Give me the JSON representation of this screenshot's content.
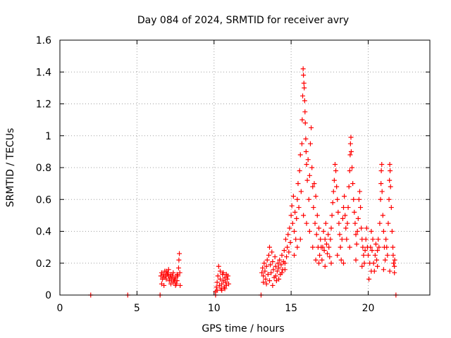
{
  "chart_data": {
    "type": "scatter",
    "title": "Day 084 of 2024, SRMTID for receiver avry",
    "xlabel": "GPS time / hours",
    "ylabel": "SRMTID / TECUs",
    "xlim": [
      0,
      24
    ],
    "ylim": [
      0,
      1.6
    ],
    "x_ticks": [
      0,
      5,
      10,
      15,
      20
    ],
    "x_tick_labels": [
      "0",
      "5",
      "10",
      "15",
      "20"
    ],
    "y_ticks": [
      0,
      0.2,
      0.4,
      0.6,
      0.8,
      1.0,
      1.2,
      1.4,
      1.6
    ],
    "y_tick_labels": [
      "0",
      "0.2",
      "0.4",
      "0.6",
      "0.8",
      "1",
      "1.2",
      "1.4",
      "1.6"
    ],
    "grid": true,
    "marker": "+",
    "color": "#ff0000",
    "series": [
      {
        "name": "SRMTID",
        "points": [
          [
            2.0,
            0.0
          ],
          [
            4.4,
            0.0
          ],
          [
            6.5,
            0.0
          ],
          [
            10.1,
            0.0
          ],
          [
            13.05,
            0.0
          ],
          [
            21.8,
            0.0
          ],
          [
            6.55,
            0.12
          ],
          [
            6.6,
            0.14
          ],
          [
            6.65,
            0.1
          ],
          [
            6.7,
            0.13
          ],
          [
            6.75,
            0.11
          ],
          [
            6.8,
            0.15
          ],
          [
            6.85,
            0.12
          ],
          [
            6.9,
            0.1
          ],
          [
            6.95,
            0.13
          ],
          [
            7.0,
            0.14
          ],
          [
            7.05,
            0.12
          ],
          [
            7.1,
            0.09
          ],
          [
            7.15,
            0.11
          ],
          [
            7.2,
            0.13
          ],
          [
            7.25,
            0.1
          ],
          [
            7.3,
            0.12
          ],
          [
            7.35,
            0.08
          ],
          [
            7.4,
            0.1
          ],
          [
            7.45,
            0.09
          ],
          [
            7.5,
            0.11
          ],
          [
            7.55,
            0.07
          ],
          [
            7.6,
            0.09
          ],
          [
            7.65,
            0.12
          ],
          [
            7.7,
            0.17
          ],
          [
            7.72,
            0.22
          ],
          [
            7.75,
            0.26
          ],
          [
            7.78,
            0.14
          ],
          [
            7.8,
            0.06
          ],
          [
            6.6,
            0.07
          ],
          [
            6.75,
            0.06
          ],
          [
            6.9,
            0.15
          ],
          [
            7.05,
            0.16
          ],
          [
            7.2,
            0.07
          ],
          [
            7.35,
            0.14
          ],
          [
            7.5,
            0.06
          ],
          [
            7.6,
            0.13
          ],
          [
            10.1,
            0.02
          ],
          [
            10.15,
            0.05
          ],
          [
            10.2,
            0.08
          ],
          [
            10.25,
            0.12
          ],
          [
            10.3,
            0.18
          ],
          [
            10.35,
            0.06
          ],
          [
            10.4,
            0.1
          ],
          [
            10.45,
            0.04
          ],
          [
            10.5,
            0.07
          ],
          [
            10.55,
            0.13
          ],
          [
            10.6,
            0.09
          ],
          [
            10.65,
            0.05
          ],
          [
            10.7,
            0.11
          ],
          [
            10.75,
            0.08
          ],
          [
            10.8,
            0.06
          ],
          [
            10.85,
            0.1
          ],
          [
            10.9,
            0.12
          ],
          [
            10.95,
            0.07
          ],
          [
            10.2,
            0.03
          ],
          [
            10.4,
            0.15
          ],
          [
            10.6,
            0.14
          ],
          [
            10.8,
            0.13
          ],
          [
            10.5,
            0.03
          ],
          [
            10.7,
            0.04
          ],
          [
            13.1,
            0.14
          ],
          [
            13.15,
            0.17
          ],
          [
            13.2,
            0.12
          ],
          [
            13.25,
            0.2
          ],
          [
            13.3,
            0.15
          ],
          [
            13.35,
            0.1
          ],
          [
            13.4,
            0.18
          ],
          [
            13.45,
            0.22
          ],
          [
            13.5,
            0.13
          ],
          [
            13.55,
            0.25
          ],
          [
            13.6,
            0.3
          ],
          [
            13.65,
            0.19
          ],
          [
            13.7,
            0.14
          ],
          [
            13.75,
            0.27
          ],
          [
            13.8,
            0.21
          ],
          [
            13.85,
            0.16
          ],
          [
            13.9,
            0.11
          ],
          [
            13.95,
            0.24
          ],
          [
            14.0,
            0.18
          ],
          [
            14.05,
            0.09
          ],
          [
            14.1,
            0.15
          ],
          [
            14.15,
            0.2
          ],
          [
            14.2,
            0.17
          ],
          [
            14.25,
            0.22
          ],
          [
            14.3,
            0.13
          ],
          [
            14.35,
            0.19
          ],
          [
            14.4,
            0.25
          ],
          [
            14.45,
            0.16
          ],
          [
            14.5,
            0.21
          ],
          [
            14.55,
            0.28
          ],
          [
            14.6,
            0.2
          ],
          [
            14.65,
            0.35
          ],
          [
            14.7,
            0.24
          ],
          [
            14.75,
            0.3
          ],
          [
            14.8,
            0.38
          ],
          [
            14.85,
            0.27
          ],
          [
            14.9,
            0.42
          ],
          [
            14.95,
            0.33
          ],
          [
            13.2,
            0.08
          ],
          [
            13.4,
            0.07
          ],
          [
            13.6,
            0.09
          ],
          [
            13.8,
            0.06
          ],
          [
            14.0,
            0.12
          ],
          [
            14.2,
            0.1
          ],
          [
            14.4,
            0.14
          ],
          [
            14.6,
            0.16
          ],
          [
            15.0,
            0.5
          ],
          [
            15.05,
            0.56
          ],
          [
            15.1,
            0.45
          ],
          [
            15.15,
            0.62
          ],
          [
            15.2,
            0.4
          ],
          [
            15.25,
            0.52
          ],
          [
            15.3,
            0.35
          ],
          [
            15.35,
            0.48
          ],
          [
            15.4,
            0.6
          ],
          [
            15.45,
            0.7
          ],
          [
            15.5,
            0.55
          ],
          [
            15.55,
            0.78
          ],
          [
            15.6,
            0.88
          ],
          [
            15.65,
            0.65
          ],
          [
            15.7,
            0.95
          ],
          [
            15.72,
            1.1
          ],
          [
            15.75,
            1.25
          ],
          [
            15.78,
            1.42
          ],
          [
            15.8,
            1.38
          ],
          [
            15.83,
            1.33
          ],
          [
            15.85,
            1.3
          ],
          [
            15.88,
            1.22
          ],
          [
            15.9,
            1.15
          ],
          [
            15.92,
            1.08
          ],
          [
            15.95,
            0.98
          ],
          [
            15.97,
            0.9
          ],
          [
            16.0,
            0.82
          ],
          [
            16.05,
            0.72
          ],
          [
            16.1,
            0.85
          ],
          [
            16.15,
            0.6
          ],
          [
            16.2,
            0.75
          ],
          [
            16.25,
            0.95
          ],
          [
            16.3,
            1.05
          ],
          [
            16.35,
            0.8
          ],
          [
            16.4,
            0.68
          ],
          [
            16.45,
            0.55
          ],
          [
            16.5,
            0.7
          ],
          [
            16.55,
            0.45
          ],
          [
            16.6,
            0.62
          ],
          [
            16.65,
            0.38
          ],
          [
            16.7,
            0.5
          ],
          [
            16.75,
            0.3
          ],
          [
            16.8,
            0.42
          ],
          [
            16.85,
            0.25
          ],
          [
            16.9,
            0.35
          ],
          [
            16.95,
            0.3
          ],
          [
            15.2,
            0.25
          ],
          [
            15.4,
            0.3
          ],
          [
            15.6,
            0.35
          ],
          [
            15.8,
            0.5
          ],
          [
            16.0,
            0.45
          ],
          [
            16.2,
            0.4
          ],
          [
            16.4,
            0.3
          ],
          [
            16.6,
            0.22
          ],
          [
            16.8,
            0.2
          ],
          [
            17.0,
            0.22
          ],
          [
            17.05,
            0.3
          ],
          [
            17.1,
            0.4
          ],
          [
            17.15,
            0.28
          ],
          [
            17.2,
            0.35
          ],
          [
            17.25,
            0.45
          ],
          [
            17.3,
            0.32
          ],
          [
            17.35,
            0.26
          ],
          [
            17.4,
            0.38
          ],
          [
            17.45,
            0.3
          ],
          [
            17.5,
            0.24
          ],
          [
            17.55,
            0.35
          ],
          [
            17.6,
            0.42
          ],
          [
            17.65,
            0.5
          ],
          [
            17.7,
            0.58
          ],
          [
            17.75,
            0.65
          ],
          [
            17.8,
            0.72
          ],
          [
            17.85,
            0.82
          ],
          [
            17.9,
            0.78
          ],
          [
            17.95,
            0.68
          ],
          [
            18.0,
            0.6
          ],
          [
            18.05,
            0.52
          ],
          [
            18.1,
            0.45
          ],
          [
            18.15,
            0.38
          ],
          [
            18.2,
            0.3
          ],
          [
            18.25,
            0.22
          ],
          [
            18.3,
            0.35
          ],
          [
            18.35,
            0.48
          ],
          [
            18.4,
            0.55
          ],
          [
            18.45,
            0.62
          ],
          [
            18.5,
            0.5
          ],
          [
            18.55,
            0.42
          ],
          [
            18.6,
            0.35
          ],
          [
            18.65,
            0.45
          ],
          [
            18.7,
            0.55
          ],
          [
            18.75,
            0.68
          ],
          [
            18.8,
            0.78
          ],
          [
            18.83,
            0.88
          ],
          [
            18.85,
            0.95
          ],
          [
            18.88,
            0.99
          ],
          [
            18.9,
            0.9
          ],
          [
            18.95,
            0.8
          ],
          [
            19.0,
            0.7
          ],
          [
            19.05,
            0.6
          ],
          [
            19.1,
            0.52
          ],
          [
            19.15,
            0.45
          ],
          [
            19.2,
            0.38
          ],
          [
            19.25,
            0.32
          ],
          [
            19.3,
            0.4
          ],
          [
            19.35,
            0.48
          ],
          [
            19.4,
            0.6
          ],
          [
            19.45,
            0.65
          ],
          [
            19.5,
            0.55
          ],
          [
            19.55,
            0.42
          ],
          [
            19.6,
            0.35
          ],
          [
            19.65,
            0.3
          ],
          [
            19.7,
            0.25
          ],
          [
            19.75,
            0.2
          ],
          [
            19.8,
            0.28
          ],
          [
            19.85,
            0.35
          ],
          [
            19.9,
            0.42
          ],
          [
            19.95,
            0.3
          ],
          [
            17.2,
            0.18
          ],
          [
            17.6,
            0.2
          ],
          [
            18.0,
            0.25
          ],
          [
            18.4,
            0.2
          ],
          [
            18.8,
            0.3
          ],
          [
            19.2,
            0.22
          ],
          [
            19.6,
            0.18
          ],
          [
            20.0,
            0.25
          ],
          [
            20.05,
            0.1
          ],
          [
            20.1,
            0.2
          ],
          [
            20.15,
            0.3
          ],
          [
            20.2,
            0.4
          ],
          [
            20.25,
            0.28
          ],
          [
            20.3,
            0.35
          ],
          [
            20.35,
            0.2
          ],
          [
            20.4,
            0.15
          ],
          [
            20.45,
            0.25
          ],
          [
            20.5,
            0.32
          ],
          [
            20.55,
            0.22
          ],
          [
            20.6,
            0.28
          ],
          [
            20.65,
            0.35
          ],
          [
            20.7,
            0.3
          ],
          [
            20.75,
            0.45
          ],
          [
            20.8,
            0.6
          ],
          [
            20.83,
            0.7
          ],
          [
            20.85,
            0.78
          ],
          [
            20.88,
            0.82
          ],
          [
            20.9,
            0.65
          ],
          [
            20.95,
            0.5
          ],
          [
            21.0,
            0.4
          ],
          [
            21.05,
            0.3
          ],
          [
            21.1,
            0.22
          ],
          [
            21.15,
            0.35
          ],
          [
            21.2,
            0.3
          ],
          [
            21.25,
            0.25
          ],
          [
            21.3,
            0.45
          ],
          [
            21.35,
            0.6
          ],
          [
            21.38,
            0.72
          ],
          [
            21.4,
            0.82
          ],
          [
            21.42,
            0.78
          ],
          [
            21.45,
            0.68
          ],
          [
            21.5,
            0.55
          ],
          [
            21.55,
            0.4
          ],
          [
            21.6,
            0.3
          ],
          [
            21.62,
            0.25
          ],
          [
            21.65,
            0.2
          ],
          [
            21.7,
            0.18
          ],
          [
            21.72,
            0.22
          ],
          [
            20.2,
            0.15
          ],
          [
            20.6,
            0.18
          ],
          [
            21.0,
            0.16
          ],
          [
            21.4,
            0.15
          ],
          [
            21.7,
            0.14
          ]
        ]
      }
    ]
  }
}
